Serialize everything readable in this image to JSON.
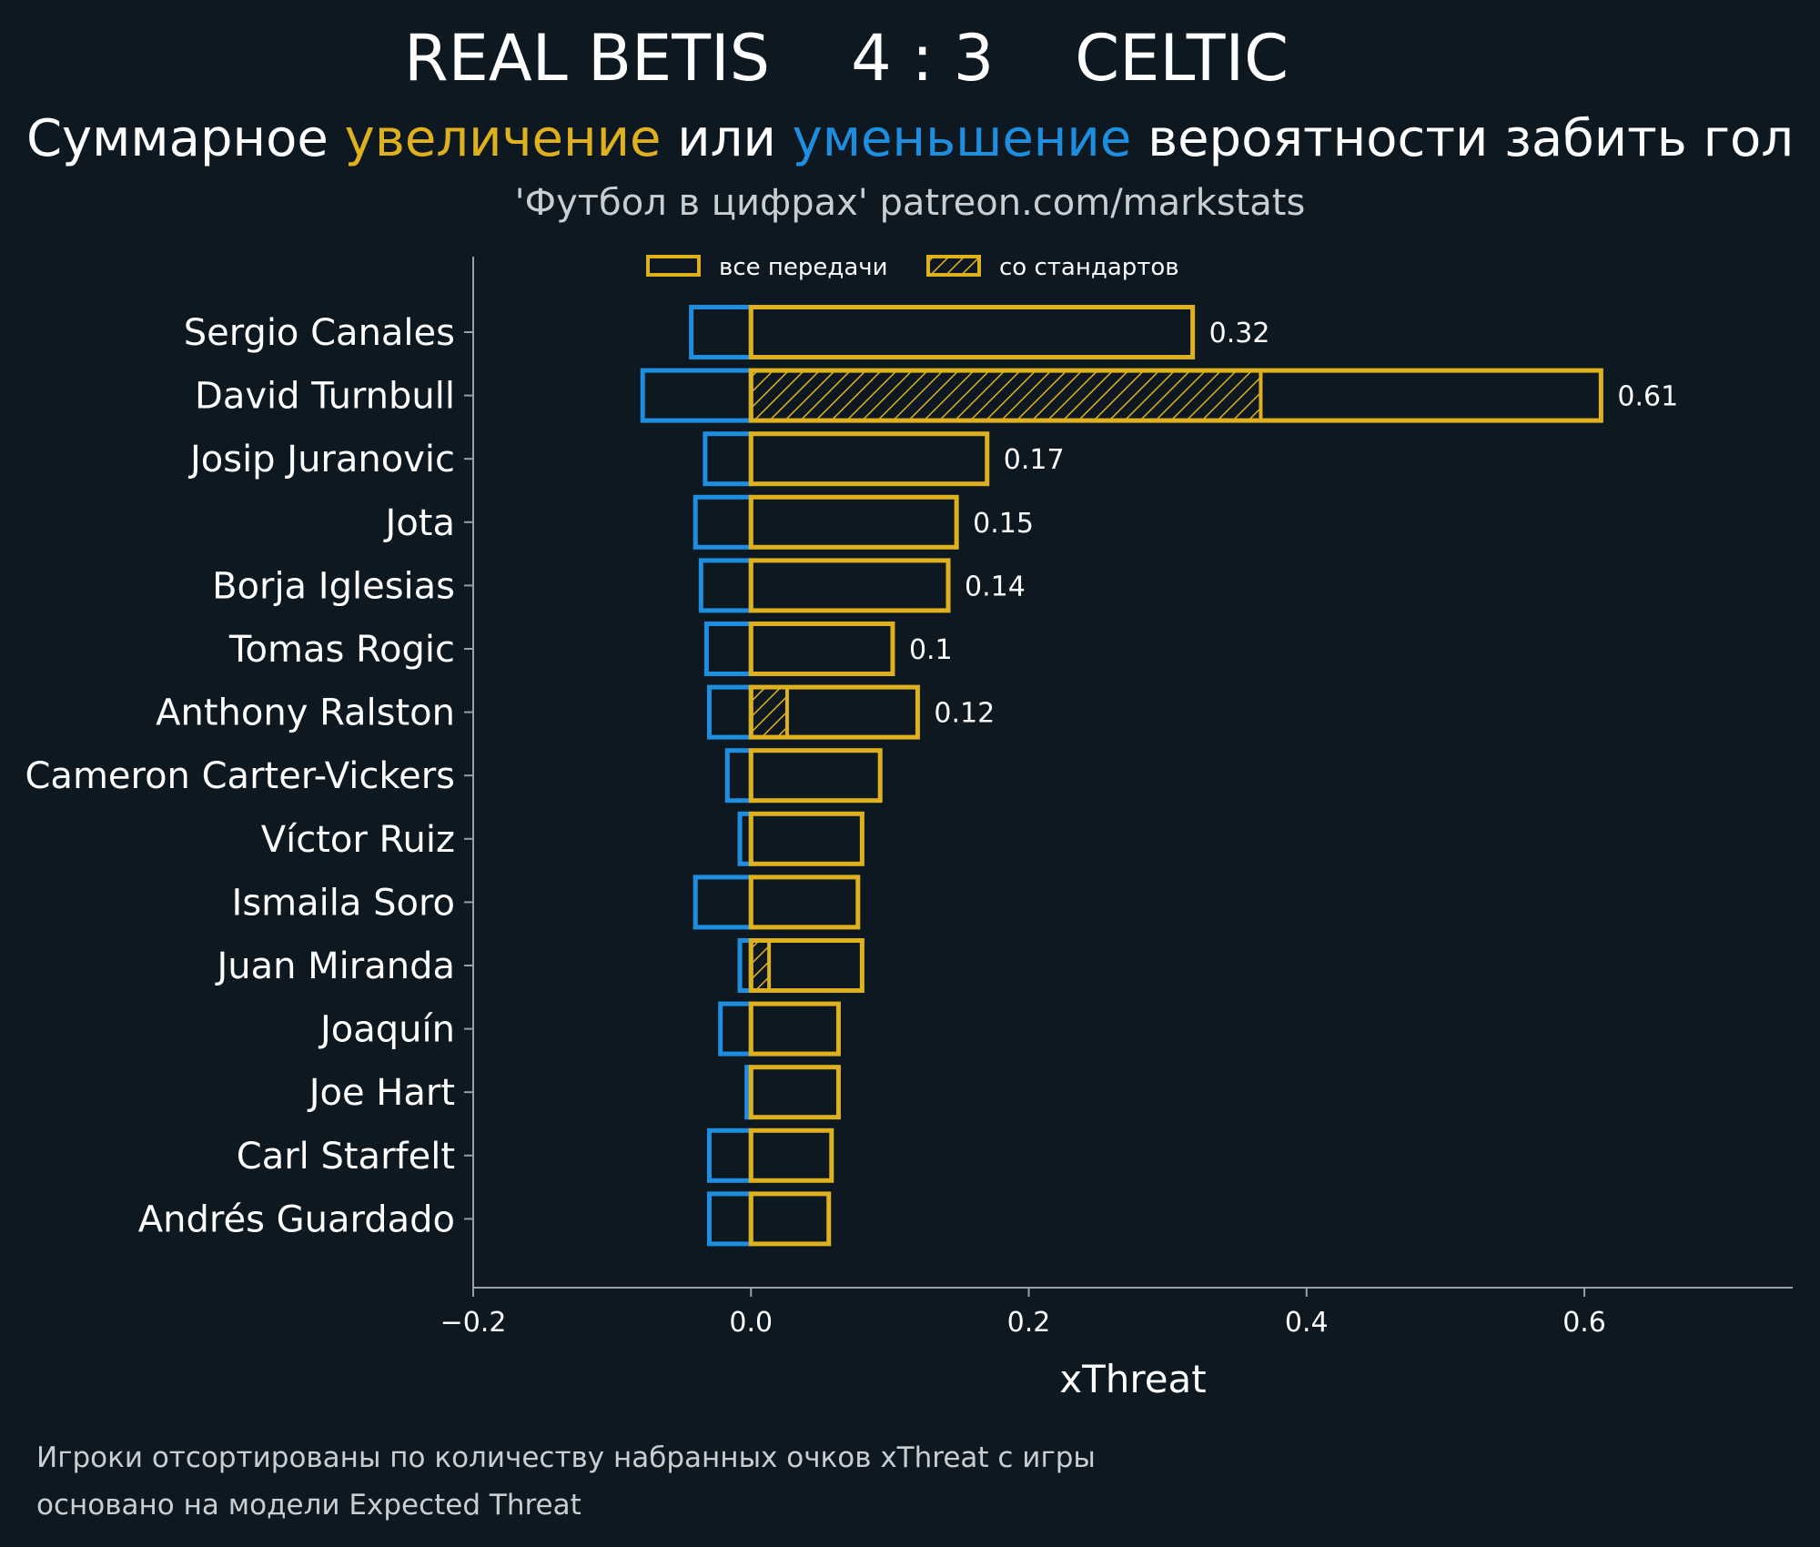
{
  "header": {
    "home_team": "REAL BETIS",
    "score": "4 : 3",
    "away_team": "CELTIC",
    "subtitle_part1": "Суммарное ",
    "subtitle_increase": "увеличение",
    "subtitle_part2": " или ",
    "subtitle_decrease": "уменьшение",
    "subtitle_part3": " вероятности забить гол",
    "source": "'Футбол в цифрах' patreon.com/markstats"
  },
  "footnotes": {
    "line1": "Игроки отсортированы по количеству набранных очков xThreat с игры",
    "line2": "основано на модели Expected Threat"
  },
  "colors": {
    "background": "#0d1821",
    "positive": "#e0b11f",
    "negative": "#1e8fe0",
    "axis": "#9aa0a6",
    "text": "#ffffff",
    "muted": "#c9ced2"
  },
  "chart_data": {
    "type": "bar",
    "orientation": "horizontal",
    "xlabel": "xThreat",
    "xlim": [
      -0.2,
      0.75
    ],
    "xticks": [
      -0.2,
      0.0,
      0.2,
      0.4,
      0.6
    ],
    "xtick_labels": [
      "−0.2",
      "0.0",
      "0.2",
      "0.4",
      "0.6"
    ],
    "legend": {
      "position": "top",
      "entries": [
        "все передачи",
        "со стандартов"
      ]
    },
    "categories": [
      "Sergio Canales",
      "David Turnbull",
      "Josip Juranovic",
      "Jota",
      "Borja Iglesias",
      "Tomas Rogic",
      "Anthony Ralston",
      "Cameron Carter-Vickers",
      "Víctor Ruiz",
      "Ismaila Soro",
      "Juan Miranda",
      "Joaquín",
      "Joe Hart",
      "Carl Starfelt",
      "Andrés Guardado"
    ],
    "series": [
      {
        "name": "увеличение (все передачи)",
        "values": [
          0.318,
          0.612,
          0.17,
          0.148,
          0.142,
          0.102,
          0.12,
          0.093,
          0.08,
          0.077,
          0.08,
          0.063,
          0.063,
          0.058,
          0.056
        ]
      },
      {
        "name": "уменьшение",
        "values": [
          -0.043,
          -0.078,
          -0.033,
          -0.04,
          -0.036,
          -0.032,
          -0.03,
          -0.017,
          -0.008,
          -0.04,
          -0.008,
          -0.022,
          -0.003,
          -0.03,
          -0.03
        ]
      },
      {
        "name": "со стандартов",
        "values": [
          0,
          0.367,
          0,
          0,
          0,
          0,
          0.026,
          0,
          0,
          0,
          0.013,
          0,
          0,
          0,
          0
        ]
      }
    ],
    "value_labels": [
      "0.32",
      "0.61",
      "0.17",
      "0.15",
      "0.14",
      "0.1",
      "0.12",
      "",
      "",
      "",
      "",
      "",
      "",
      "",
      ""
    ]
  }
}
